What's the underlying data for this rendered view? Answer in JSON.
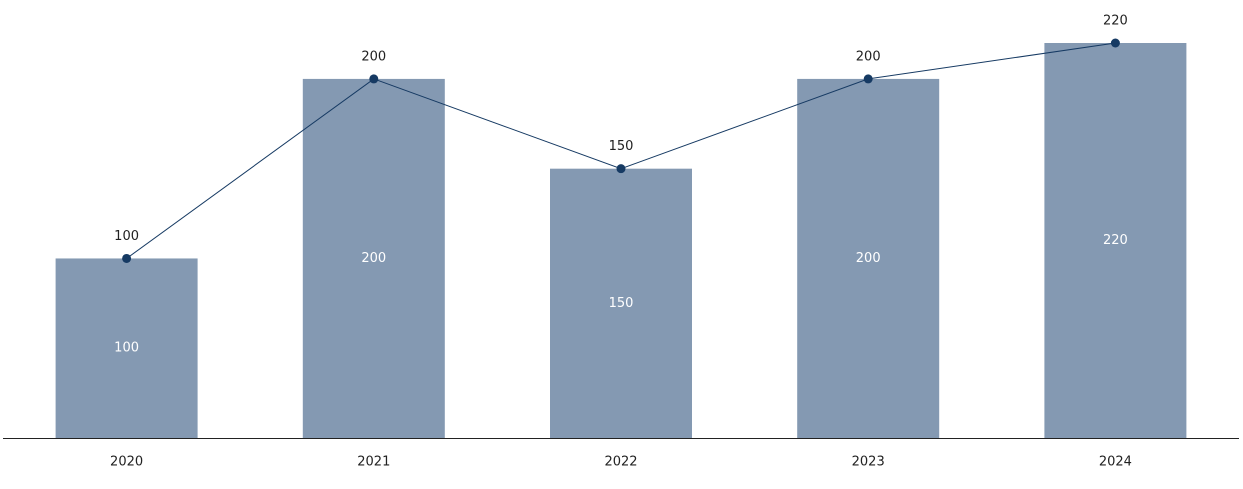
{
  "chart_data": {
    "type": "combo",
    "categories": [
      "2020",
      "2021",
      "2022",
      "2023",
      "2024"
    ],
    "series": [
      {
        "type": "bar",
        "color": "#8499b2",
        "values": [
          100,
          200,
          150,
          200,
          220
        ]
      },
      {
        "type": "line",
        "color": "#163a63",
        "values": [
          100,
          200,
          150,
          200,
          220
        ]
      }
    ]
  }
}
